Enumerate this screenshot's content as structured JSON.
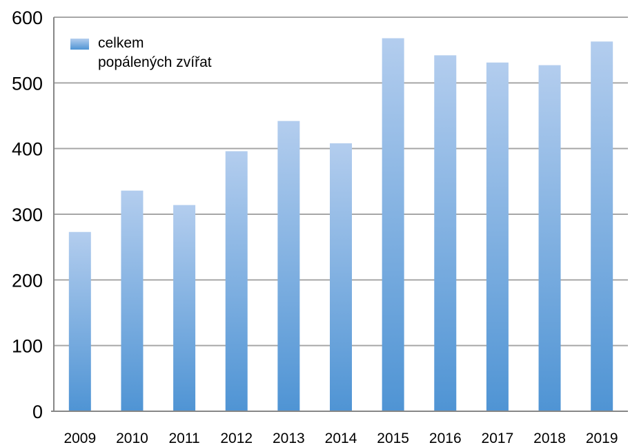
{
  "chart_data": {
    "type": "bar",
    "title": "",
    "xlabel": "",
    "ylabel": "",
    "categories": [
      "2009",
      "2010",
      "2011",
      "2012",
      "2013",
      "2014",
      "2015",
      "2016",
      "2017",
      "2018",
      "2019"
    ],
    "series": [
      {
        "name": "celkem popálených zvířat",
        "values": [
          273,
          336,
          314,
          396,
          442,
          408,
          568,
          542,
          531,
          527,
          563
        ]
      }
    ],
    "ylim": [
      0,
      600
    ],
    "yticks": [
      "0",
      "100",
      "200",
      "300",
      "400",
      "500",
      "600"
    ],
    "grid": true,
    "legend": {
      "position": "top-left",
      "lines": [
        "celkem",
        "popálených zvířat"
      ]
    },
    "colors": {
      "bar_top": "#b3cdee",
      "bar_bottom": "#4f94d4",
      "gridline": "#a6a6a6",
      "axis": "#868686"
    }
  }
}
